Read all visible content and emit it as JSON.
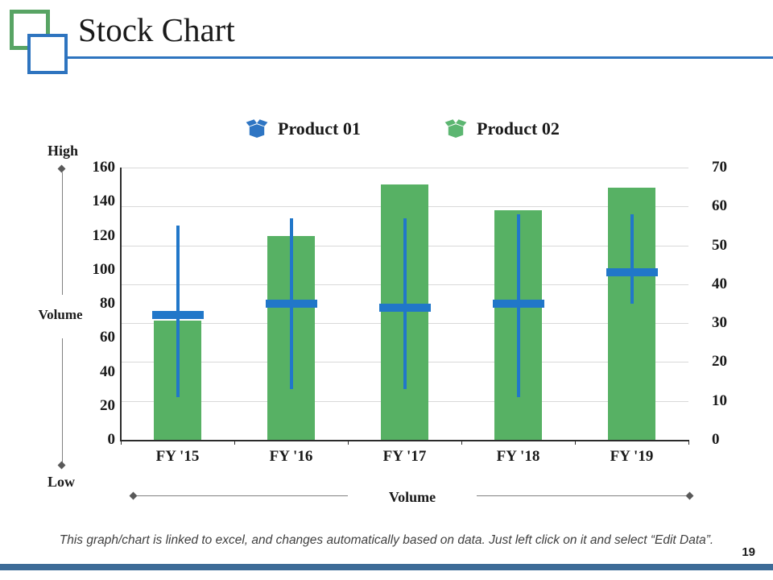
{
  "slide": {
    "title": "Stock Chart",
    "page_number": "19",
    "footer_note": "This graph/chart is linked to excel, and changes automatically based on data. Just left click on it and select “Edit Data”."
  },
  "legend": [
    {
      "label": "Product 01",
      "icon": "open-box-icon",
      "color": "#2e75c3"
    },
    {
      "label": "Product 02",
      "icon": "open-box-icon",
      "color": "#5cb671"
    }
  ],
  "annotations": {
    "high": "High",
    "low": "Low",
    "volume_left": "Volume",
    "volume_bottom": "Volume"
  },
  "chart_data": {
    "type": "bar",
    "subtype": "volume-high-low-close stock chart",
    "categories": [
      "FY '15",
      "FY '16",
      "FY '17",
      "FY '18",
      "FY '19"
    ],
    "series": [
      {
        "name": "Volume (green bars)",
        "axis": "left",
        "values": [
          70,
          120,
          150,
          135,
          148
        ]
      },
      {
        "name": "High (line top)",
        "axis": "right",
        "values": [
          55,
          57,
          57,
          58,
          58
        ]
      },
      {
        "name": "Low (line bottom)",
        "axis": "right",
        "values": [
          11,
          13,
          13,
          11,
          35
        ]
      },
      {
        "name": "Close (thick marker)",
        "axis": "right",
        "values": [
          32,
          35,
          34,
          35,
          43
        ]
      }
    ],
    "left_axis": {
      "min": 0,
      "max": 160,
      "step": 20,
      "ticks": [
        "160",
        "140",
        "120",
        "100",
        "80",
        "60",
        "40",
        "20",
        "0"
      ]
    },
    "right_axis": {
      "min": 0,
      "max": 70,
      "step": 10,
      "ticks": [
        "70",
        "60",
        "50",
        "40",
        "30",
        "20",
        "10",
        "0"
      ]
    },
    "grid": true,
    "legend_position": "top",
    "bar_color": "#57b164",
    "line_color": "#2177c9",
    "grid_color": "#d9d9d9",
    "axis_color": "#2b2b2b"
  }
}
